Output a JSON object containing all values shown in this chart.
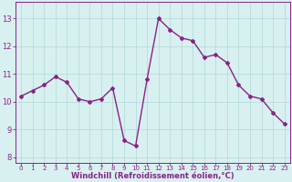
{
  "x": [
    0,
    1,
    2,
    3,
    4,
    5,
    6,
    7,
    8,
    9,
    10,
    11,
    12,
    13,
    14,
    15,
    16,
    17,
    18,
    19,
    20,
    21,
    22,
    23
  ],
  "y": [
    10.2,
    10.4,
    10.6,
    10.9,
    10.7,
    10.1,
    10.0,
    10.1,
    10.5,
    8.6,
    8.4,
    10.8,
    13.0,
    12.6,
    12.3,
    12.2,
    11.6,
    11.7,
    11.4,
    10.6,
    10.2,
    10.1,
    9.6,
    9.2
  ],
  "line_color": "#882288",
  "marker": "D",
  "markersize": 2.0,
  "linewidth": 1.0,
  "xlabel": "Windchill (Refroidissement éolien,°C)",
  "xlabel_fontsize": 6.0,
  "bg_color": "#d8f0f0",
  "grid_color": "#b0d8d8",
  "tick_color": "#882288",
  "label_color": "#882288",
  "ylim": [
    7.8,
    13.6
  ],
  "xlim": [
    -0.5,
    23.5
  ],
  "yticks": [
    8,
    9,
    10,
    11,
    12,
    13
  ],
  "xticks": [
    0,
    1,
    2,
    3,
    4,
    5,
    6,
    7,
    8,
    9,
    10,
    11,
    12,
    13,
    14,
    15,
    16,
    17,
    18,
    19,
    20,
    21,
    22,
    23
  ],
  "ytick_fontsize": 6.0,
  "xtick_fontsize": 5.0
}
